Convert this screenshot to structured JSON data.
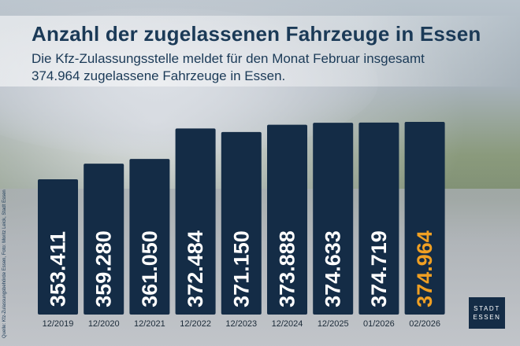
{
  "header": {
    "title": "Anzahl der zugelassenen Fahrzeuge in Essen",
    "subtitle": "Die Kfz-Zulassungsstelle meldet für den Monat Februar insgesamt 374.964 zugelassene Fahrzeuge in Essen."
  },
  "source_note": "Quelle: Kfz-Zulassungsbehörde Essen, Foto: Moritz Leick, Stadt Essen",
  "logo": {
    "line1": "STADT",
    "line2": "ESSEN"
  },
  "colors": {
    "bar": "#142c46",
    "highlight": "#f0a023",
    "text": "#1b3a57"
  },
  "chart_data": {
    "type": "bar",
    "categories": [
      "12/2019",
      "12/2020",
      "12/2021",
      "12/2022",
      "12/2023",
      "12/2024",
      "12/2025",
      "01/2026",
      "02/2026"
    ],
    "values": [
      353411,
      359280,
      361050,
      372484,
      371150,
      373888,
      374633,
      374719,
      374964
    ],
    "value_labels": [
      "353.411",
      "359.280",
      "361.050",
      "372.484",
      "371.150",
      "373.888",
      "374.633",
      "374.719",
      "374.964"
    ],
    "highlight_index": 8,
    "title": "Anzahl der zugelassenen Fahrzeuge in Essen",
    "xlabel": "",
    "ylabel": "",
    "ylim": [
      340000,
      376000
    ],
    "grid": false,
    "legend": "none"
  }
}
